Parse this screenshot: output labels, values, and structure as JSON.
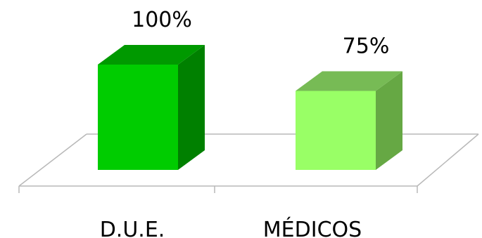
{
  "chart_data": {
    "type": "bar",
    "style": "3d",
    "categories": [
      "D.U.E.",
      "MÉDICOS"
    ],
    "values": [
      100,
      75
    ],
    "data_labels": [
      "100%",
      "75%"
    ],
    "ylim": [
      0,
      100
    ],
    "grid": false,
    "legend": "none",
    "series_colors": [
      {
        "front": "#00cc00",
        "top": "#009900",
        "side": "#008000"
      },
      {
        "front": "#99ff66",
        "top": "#77bb55",
        "side": "#66a844"
      }
    ],
    "floor_color": "#b8b8b8"
  }
}
